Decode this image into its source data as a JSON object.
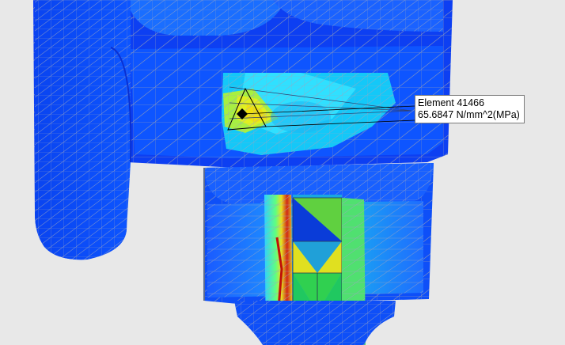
{
  "colors": {
    "background": "#e8e8e8",
    "stress_low": "#0a3cf5",
    "stress_low_mid": "#1e78ff",
    "stress_mid": "#18c8f0",
    "stress_mid_high": "#40ff90",
    "stress_high": "#e8e020",
    "stress_peak": "#e02010",
    "mesh_line": "#9aa0b0",
    "tooltip_bg": "#ffffff",
    "tooltip_border": "#7a7a7a"
  },
  "probe": {
    "element_label": "Element 41466",
    "value_label": "65.6847 N/mm^2(MPa)",
    "marker_icon": "diamond-probe-icon"
  }
}
